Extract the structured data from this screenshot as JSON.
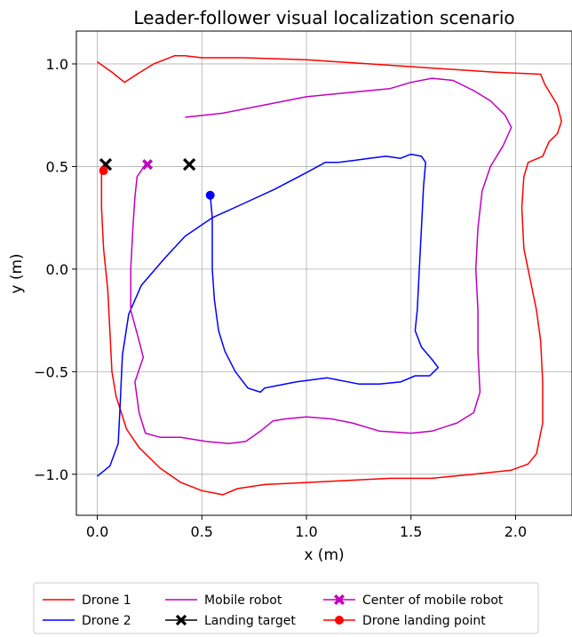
{
  "chart_data": {
    "type": "line",
    "title": "Leader-follower visual localization scenario",
    "xlabel": "x (m)",
    "ylabel": "y (m)",
    "xlim": [
      -0.1,
      2.27
    ],
    "ylim": [
      -1.2,
      1.16
    ],
    "xticks": [
      0.0,
      0.5,
      1.0,
      1.5,
      2.0
    ],
    "xtick_labels": [
      "0.0",
      "0.5",
      "1.0",
      "1.5",
      "2.0"
    ],
    "yticks": [
      -1.0,
      -0.5,
      0.0,
      0.5,
      1.0
    ],
    "ytick_labels": [
      "−1.0",
      "−0.5",
      "0.0",
      "0.5",
      "1.0"
    ],
    "grid": true,
    "legend_position": "bottom-outside",
    "series": [
      {
        "name": "Drone 1",
        "color": "#ff0000",
        "points": [
          [
            0.0,
            1.01
          ],
          [
            0.07,
            0.96
          ],
          [
            0.13,
            0.91
          ],
          [
            0.19,
            0.95
          ],
          [
            0.27,
            1.0
          ],
          [
            0.37,
            1.04
          ],
          [
            0.42,
            1.04
          ],
          [
            0.5,
            1.03
          ],
          [
            0.7,
            1.03
          ],
          [
            1.0,
            1.02
          ],
          [
            1.3,
            1.0
          ],
          [
            1.6,
            0.98
          ],
          [
            1.9,
            0.96
          ],
          [
            2.12,
            0.95
          ],
          [
            2.14,
            0.9
          ],
          [
            2.2,
            0.8
          ],
          [
            2.22,
            0.72
          ],
          [
            2.2,
            0.66
          ],
          [
            2.16,
            0.62
          ],
          [
            2.13,
            0.55
          ],
          [
            2.06,
            0.52
          ],
          [
            2.04,
            0.45
          ],
          [
            2.03,
            0.3
          ],
          [
            2.04,
            0.1
          ],
          [
            2.07,
            -0.05
          ],
          [
            2.1,
            -0.2
          ],
          [
            2.12,
            -0.35
          ],
          [
            2.13,
            -0.55
          ],
          [
            2.13,
            -0.75
          ],
          [
            2.1,
            -0.9
          ],
          [
            2.06,
            -0.95
          ],
          [
            1.98,
            -0.98
          ],
          [
            1.8,
            -1.0
          ],
          [
            1.6,
            -1.02
          ],
          [
            1.4,
            -1.02
          ],
          [
            1.2,
            -1.03
          ],
          [
            1.0,
            -1.04
          ],
          [
            0.8,
            -1.05
          ],
          [
            0.67,
            -1.07
          ],
          [
            0.6,
            -1.1
          ],
          [
            0.5,
            -1.08
          ],
          [
            0.4,
            -1.04
          ],
          [
            0.3,
            -0.97
          ],
          [
            0.2,
            -0.87
          ],
          [
            0.14,
            -0.78
          ],
          [
            0.09,
            -0.62
          ],
          [
            0.07,
            -0.5
          ],
          [
            0.06,
            -0.3
          ],
          [
            0.05,
            -0.1
          ],
          [
            0.03,
            0.1
          ],
          [
            0.02,
            0.3
          ],
          [
            0.02,
            0.48
          ]
        ]
      },
      {
        "name": "Drone 2",
        "color": "#0000ff",
        "points": [
          [
            0.0,
            -1.01
          ],
          [
            0.06,
            -0.96
          ],
          [
            0.1,
            -0.85
          ],
          [
            0.11,
            -0.65
          ],
          [
            0.12,
            -0.42
          ],
          [
            0.15,
            -0.22
          ],
          [
            0.21,
            -0.08
          ],
          [
            0.32,
            0.05
          ],
          [
            0.42,
            0.16
          ],
          [
            0.55,
            0.25
          ],
          [
            0.7,
            0.32
          ],
          [
            0.85,
            0.39
          ],
          [
            1.0,
            0.47
          ],
          [
            1.09,
            0.52
          ],
          [
            1.15,
            0.52
          ],
          [
            1.23,
            0.53
          ],
          [
            1.3,
            0.54
          ],
          [
            1.38,
            0.55
          ],
          [
            1.45,
            0.54
          ],
          [
            1.5,
            0.56
          ],
          [
            1.55,
            0.55
          ],
          [
            1.57,
            0.52
          ],
          [
            1.56,
            0.4
          ],
          [
            1.55,
            0.2
          ],
          [
            1.54,
            0.0
          ],
          [
            1.53,
            -0.2
          ],
          [
            1.52,
            -0.3
          ],
          [
            1.55,
            -0.38
          ],
          [
            1.6,
            -0.44
          ],
          [
            1.63,
            -0.48
          ],
          [
            1.59,
            -0.52
          ],
          [
            1.52,
            -0.52
          ],
          [
            1.45,
            -0.55
          ],
          [
            1.35,
            -0.56
          ],
          [
            1.25,
            -0.56
          ],
          [
            1.1,
            -0.53
          ],
          [
            0.95,
            -0.55
          ],
          [
            0.85,
            -0.57
          ],
          [
            0.8,
            -0.58
          ],
          [
            0.78,
            -0.6
          ],
          [
            0.72,
            -0.58
          ],
          [
            0.66,
            -0.5
          ],
          [
            0.61,
            -0.4
          ],
          [
            0.58,
            -0.3
          ],
          [
            0.56,
            -0.15
          ],
          [
            0.55,
            0.0
          ],
          [
            0.55,
            0.13
          ],
          [
            0.55,
            0.25
          ],
          [
            0.54,
            0.36
          ]
        ]
      },
      {
        "name": "Mobile robot",
        "color": "#c000c0",
        "points": [
          [
            0.42,
            0.74
          ],
          [
            0.6,
            0.76
          ],
          [
            0.8,
            0.8
          ],
          [
            1.0,
            0.84
          ],
          [
            1.2,
            0.86
          ],
          [
            1.4,
            0.88
          ],
          [
            1.5,
            0.91
          ],
          [
            1.6,
            0.93
          ],
          [
            1.7,
            0.92
          ],
          [
            1.8,
            0.87
          ],
          [
            1.88,
            0.82
          ],
          [
            1.95,
            0.75
          ],
          [
            1.98,
            0.69
          ],
          [
            1.94,
            0.6
          ],
          [
            1.88,
            0.5
          ],
          [
            1.84,
            0.38
          ],
          [
            1.82,
            0.2
          ],
          [
            1.81,
            0.0
          ],
          [
            1.82,
            -0.2
          ],
          [
            1.82,
            -0.4
          ],
          [
            1.83,
            -0.6
          ],
          [
            1.8,
            -0.7
          ],
          [
            1.72,
            -0.75
          ],
          [
            1.6,
            -0.79
          ],
          [
            1.5,
            -0.8
          ],
          [
            1.35,
            -0.79
          ],
          [
            1.22,
            -0.75
          ],
          [
            1.12,
            -0.73
          ],
          [
            1.0,
            -0.72
          ],
          [
            0.9,
            -0.73
          ],
          [
            0.84,
            -0.74
          ],
          [
            0.78,
            -0.79
          ],
          [
            0.71,
            -0.84
          ],
          [
            0.63,
            -0.85
          ],
          [
            0.52,
            -0.84
          ],
          [
            0.4,
            -0.82
          ],
          [
            0.3,
            -0.82
          ],
          [
            0.23,
            -0.8
          ],
          [
            0.2,
            -0.7
          ],
          [
            0.18,
            -0.55
          ],
          [
            0.22,
            -0.43
          ],
          [
            0.2,
            -0.35
          ],
          [
            0.16,
            -0.2
          ],
          [
            0.16,
            0.0
          ],
          [
            0.17,
            0.2
          ],
          [
            0.18,
            0.35
          ],
          [
            0.19,
            0.45
          ],
          [
            0.23,
            0.51
          ]
        ]
      }
    ],
    "markers": [
      {
        "name": "Landing target",
        "symbol": "x",
        "color": "#000000",
        "points": [
          [
            0.04,
            0.51
          ],
          [
            0.44,
            0.51
          ]
        ]
      },
      {
        "name": "Center of mobile robot",
        "symbol": "X",
        "color": "#c000c0",
        "points": [
          [
            0.24,
            0.51
          ]
        ]
      },
      {
        "name": "Drone landing point",
        "symbol": "o",
        "color": "#ff0000",
        "points": [
          [
            0.03,
            0.48
          ]
        ]
      },
      {
        "name": "Drone 2 landing point",
        "symbol": "o",
        "color": "#0000ff",
        "points": [
          [
            0.54,
            0.36
          ]
        ]
      }
    ],
    "legend": [
      {
        "label": "Drone 1",
        "color": "#ff0000",
        "symbol": "line"
      },
      {
        "label": "Drone 2",
        "color": "#0000ff",
        "symbol": "line"
      },
      {
        "label": "Mobile robot",
        "color": "#c000c0",
        "symbol": "line"
      },
      {
        "label": "Landing target",
        "color": "#000000",
        "symbol": "line-x"
      },
      {
        "label": "Center of mobile robot",
        "color": "#c000c0",
        "symbol": "line-X"
      },
      {
        "label": "Drone landing point",
        "color": "#ff0000",
        "symbol": "line-o"
      }
    ]
  }
}
